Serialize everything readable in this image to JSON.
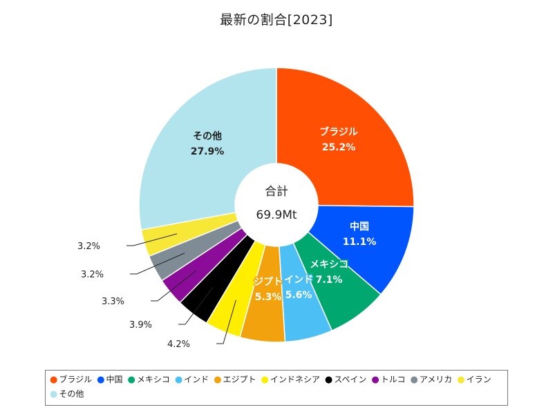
{
  "chart_data": {
    "type": "pie",
    "title": "最新の割合[2023]",
    "center_label": "合計",
    "center_value": "69.9Mt",
    "slices": [
      {
        "name": "ブラジル",
        "value": 25.2,
        "label": "25.2%",
        "color": "#ff4f02"
      },
      {
        "name": "中国",
        "value": 11.1,
        "label": "11.1%",
        "color": "#0055ff"
      },
      {
        "name": "メキシコ",
        "value": 7.1,
        "label": "7.1%",
        "color": "#00a870"
      },
      {
        "name": "インド",
        "value": 5.6,
        "label": "5.6%",
        "color": "#4cbff5"
      },
      {
        "name": "エジプト",
        "value": 5.3,
        "label": "5.3%",
        "color": "#f2a20c"
      },
      {
        "name": "インドネシア",
        "value": 4.2,
        "label": "4.2%",
        "color": "#ffee00"
      },
      {
        "name": "スペイン",
        "value": 3.9,
        "label": "3.9%",
        "color": "#000000"
      },
      {
        "name": "トルコ",
        "value": 3.3,
        "label": "3.3%",
        "color": "#8a0c99"
      },
      {
        "name": "アメリカ",
        "value": 3.2,
        "label": "3.2%",
        "color": "#7f8c96"
      },
      {
        "name": "イラン",
        "value": 3.2,
        "label": "3.2%",
        "color": "#f7e838"
      },
      {
        "name": "その他",
        "value": 27.9,
        "label": "27.9%",
        "color": "#b2e4ed"
      }
    ],
    "inside_labels": [
      "ブラジル",
      "中国",
      "メキシコ",
      "インド",
      "ジプト",
      "その他"
    ],
    "legend_position": "bottom"
  }
}
